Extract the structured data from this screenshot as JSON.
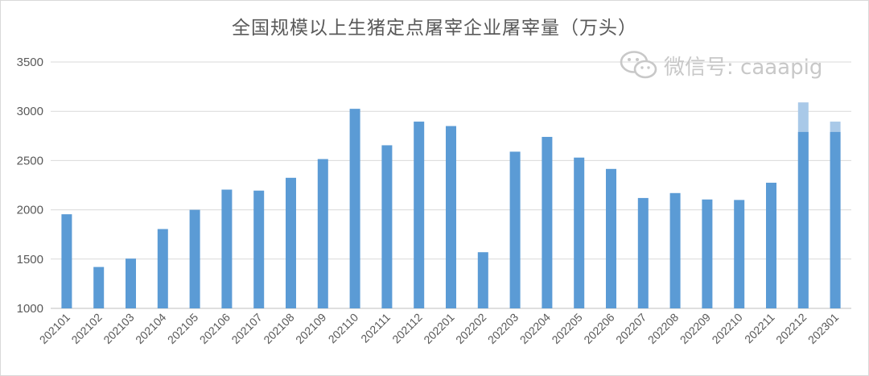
{
  "chart_data": {
    "type": "bar",
    "title": "全国规模以上生猪定点屠宰企业屠宰量（万头）",
    "xlabel": "",
    "ylabel": "",
    "ylim": [
      1000,
      3500
    ],
    "yticks": [
      1000,
      1500,
      2000,
      2500,
      3000,
      3500
    ],
    "grid": true,
    "categories": [
      "202101",
      "202102",
      "202103",
      "202104",
      "202105",
      "202106",
      "202107",
      "202108",
      "202109",
      "202110",
      "202111",
      "202112",
      "202201",
      "202202",
      "202203",
      "202204",
      "202205",
      "202206",
      "202207",
      "202208",
      "202209",
      "202210",
      "202211",
      "202212",
      "202301"
    ],
    "values": [
      1955,
      1420,
      1505,
      1805,
      2000,
      2205,
      2195,
      2325,
      2515,
      3025,
      2655,
      2895,
      2850,
      1570,
      2590,
      2740,
      2530,
      2415,
      2120,
      2170,
      2105,
      2100,
      2275,
      3090,
      2895
    ],
    "overlay_values": [
      null,
      null,
      null,
      null,
      null,
      null,
      null,
      null,
      null,
      null,
      null,
      null,
      null,
      null,
      null,
      null,
      null,
      null,
      null,
      null,
      null,
      null,
      null,
      2790,
      2790
    ],
    "colors": {
      "bar": "#5b9bd5",
      "bar_light": "#a9c9e8",
      "grid": "#d9d9d9",
      "axis": "#bfbfbf"
    }
  },
  "watermark": {
    "text": "微信号: caaapig",
    "icon": "wechat-icon"
  }
}
